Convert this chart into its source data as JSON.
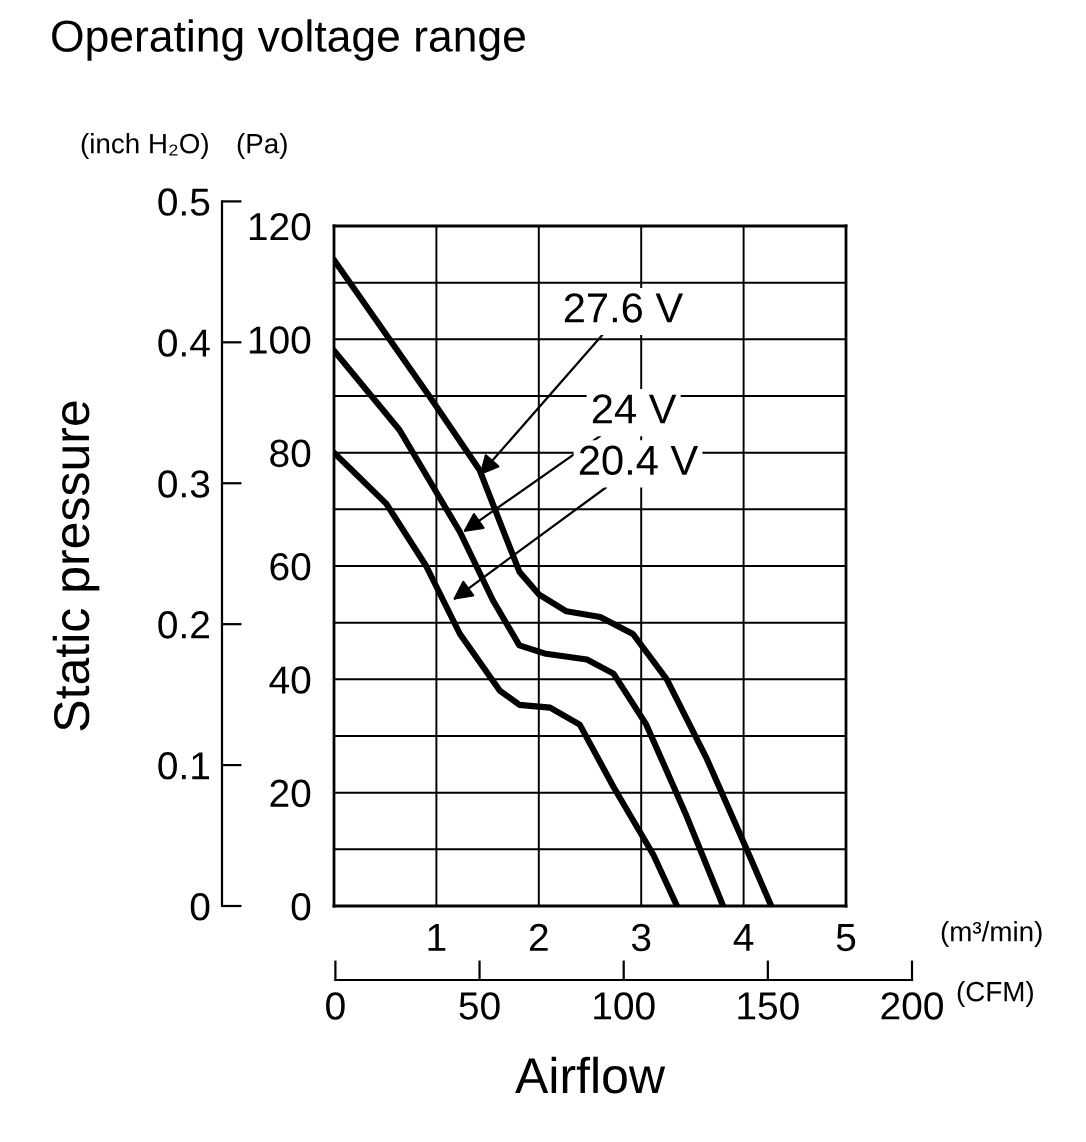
{
  "chart_data": {
    "type": "line",
    "title": "Operating voltage range",
    "xlabel": "Airflow",
    "y2label": "Static pressure",
    "xlim": [
      0,
      5
    ],
    "xticks": [
      1,
      2,
      3,
      4,
      5
    ],
    "ylim": [
      0,
      120
    ],
    "yticks": [
      0,
      {
        "value": 10,
        "label": null
      },
      20,
      {
        "value": 30,
        "label": null
      },
      40,
      {
        "value": 50,
        "label": null
      },
      60,
      {
        "value": 70,
        "label": null
      },
      80,
      {
        "value": 90,
        "label": null
      },
      100,
      {
        "value": 110,
        "label": null
      },
      120
    ],
    "y2lim": [
      0,
      0.5
    ],
    "y2ticks": [
      0,
      0.1,
      0.2,
      0.3,
      0.4,
      0.5
    ],
    "x2lim": [
      0,
      200
    ],
    "x2ticks": [
      0,
      50,
      100,
      150,
      200
    ],
    "grid": true,
    "marker": "none",
    "line_style": "solid",
    "series": [
      {
        "color": "#000000",
        "x": [
          0,
          0.93,
          1.42,
          1.81,
          2.0,
          2.27,
          2.6,
          2.92,
          3.25,
          3.64,
          4.03,
          4.27
        ],
        "values": [
          114,
          90,
          77,
          59,
          55,
          52,
          51,
          48,
          40,
          26,
          10,
          0
        ]
      },
      {
        "color": "#000000",
        "x": [
          0,
          0.64,
          1.23,
          1.55,
          1.81,
          2.07,
          2.47,
          2.73,
          3.05,
          3.44,
          3.8
        ],
        "values": [
          98,
          84,
          66,
          54,
          46,
          44.5,
          43.5,
          41,
          32,
          16,
          0
        ]
      },
      {
        "color": "#000000",
        "x": [
          0,
          0.51,
          0.9,
          1.23,
          1.62,
          1.81,
          2.11,
          2.4,
          2.73,
          3.12,
          3.35
        ],
        "values": [
          80,
          71,
          60,
          48,
          38,
          35.5,
          35,
          32,
          21,
          9,
          0
        ]
      }
    ],
    "annotations": [
      {
        "text": "27.6 V",
        "x": 1.42,
        "y": 76
      },
      {
        "text": "24 V",
        "x": 1.26,
        "y": 66
      },
      {
        "text": "20.4 V",
        "x": 1.16,
        "y": 54
      },
      "(inch H₂O)",
      "(Pa)",
      "(m³/min)",
      "(CFM)"
    ]
  }
}
